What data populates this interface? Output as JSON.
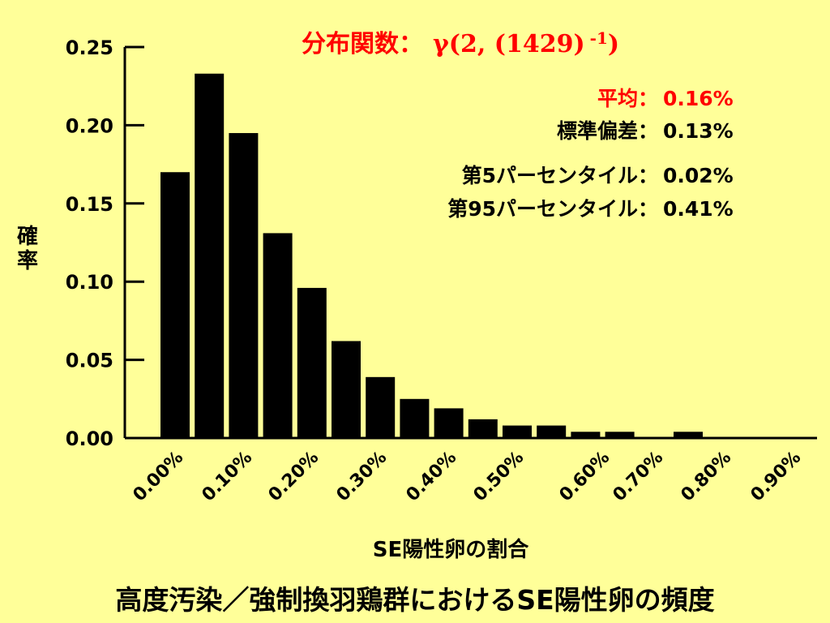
{
  "colors": {
    "background": "#ffff99",
    "bars": "#000000",
    "title": "#ff0000",
    "mean": "#ff0000"
  },
  "chart_data": {
    "type": "bar",
    "title": "分布関数： γ(2, (1429) -1)",
    "title_parts": {
      "label": "分布関数：",
      "func": "γ(2, (1429)",
      "exponent": "-1",
      "close": ")"
    },
    "ylabel": "確率",
    "xlabel": "SE陽性卵の割合",
    "ylim": [
      0,
      0.25
    ],
    "yticks": [
      "0.00",
      "0.05",
      "0.10",
      "0.15",
      "0.20",
      "0.25"
    ],
    "xtick_labels": [
      "0.00%",
      "0.10%",
      "0.20%",
      "0.30%",
      "0.40%",
      "0.50%",
      "0.60%",
      "0.70%",
      "0.80%",
      "0.90%"
    ],
    "values": [
      0.17,
      0.233,
      0.195,
      0.131,
      0.096,
      0.062,
      0.039,
      0.025,
      0.019,
      0.012,
      0.008,
      0.008,
      0.004,
      0.004,
      0,
      0.004,
      0,
      0,
      0,
      0
    ],
    "stats": [
      {
        "label": "平均：",
        "value": "0.16%",
        "highlight": true
      },
      {
        "label": "標準偏差：",
        "value": "0.13%"
      },
      {
        "label": "第5パーセンタイル：",
        "value": "0.02%"
      },
      {
        "label": "第95パーセンタイル：",
        "value": "0.41%"
      }
    ]
  },
  "footer": {
    "caption": "高度汚染／強制換羽鶏群におけるSE陽性卵の頻度"
  }
}
